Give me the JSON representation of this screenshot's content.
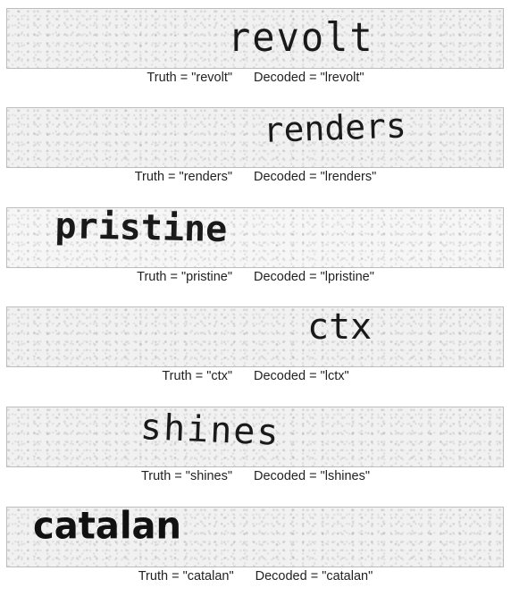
{
  "samples": [
    {
      "word": "revolt",
      "truth_label": "Truth = \"revolt\"",
      "decoded_label": "Decoded = \"lrevolt\""
    },
    {
      "word": "renders",
      "truth_label": "Truth = \"renders\"",
      "decoded_label": "Decoded = \"lrenders\""
    },
    {
      "word": "pristine",
      "truth_label": "Truth = \"pristine\"",
      "decoded_label": "Decoded = \"lpristine\""
    },
    {
      "word": "ctx",
      "truth_label": "Truth = \"ctx\"",
      "decoded_label": "Decoded = \"lctx\""
    },
    {
      "word": "shines",
      "truth_label": "Truth = \"shines\"",
      "decoded_label": "Decoded = \"lshines\""
    },
    {
      "word": "catalan",
      "truth_label": "Truth = \"catalan\"",
      "decoded_label": "Decoded = \"catalan\""
    }
  ]
}
